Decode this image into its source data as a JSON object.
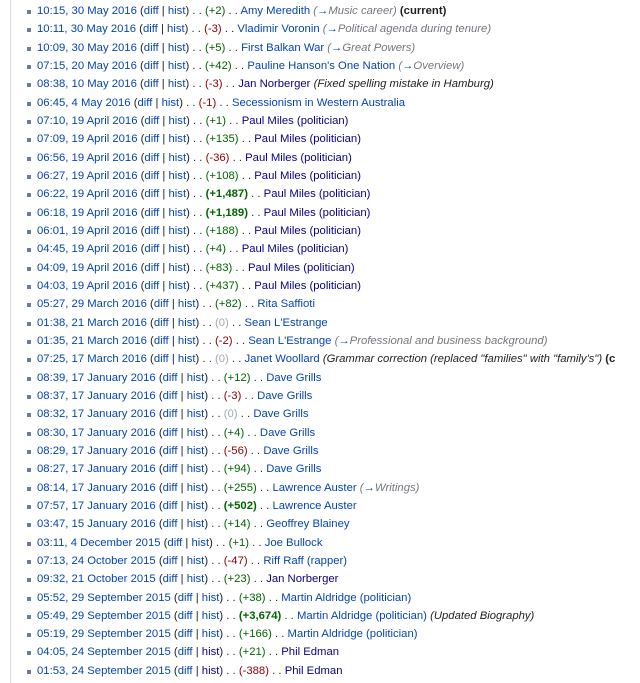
{
  "labels": {
    "diff": "diff",
    "hist": "hist",
    "current": "(current)",
    "arrow": "→",
    "dots": ". ."
  },
  "colors": {
    "link": "#0645ad",
    "visited": "#0b0080",
    "positive": "#006400",
    "negative": "#8b0000",
    "zero": "#a2a9b1"
  },
  "rows": [
    {
      "ts": "10:15, 30 May 2016",
      "delta": "+2",
      "title": "Amy Meredith",
      "section": "Music career",
      "current": true
    },
    {
      "ts": "10:11, 30 May 2016",
      "delta": "-3",
      "title": "Vladimir Voronin",
      "section": "Political agenda during tenure"
    },
    {
      "ts": "10:09, 30 May 2016",
      "delta": "+5",
      "title": "First Balkan War",
      "section": "Great Powers"
    },
    {
      "ts": "07:15, 20 May 2016",
      "delta": "+42",
      "title": "Pauline Hanson's One Nation",
      "section": "Overview"
    },
    {
      "ts": "08:38, 10 May 2016",
      "delta": "-3",
      "title": "Jan Norberger",
      "visited": true,
      "summary": "(Fixed spelling mistake in Hamburg)"
    },
    {
      "ts": "06:45, 4 May 2016",
      "delta": "-1",
      "title": "Secessionism in Western Australia"
    },
    {
      "ts": "07:10, 19 April 2016",
      "delta": "+1",
      "title": "Paul Miles (politician)",
      "visited": true
    },
    {
      "ts": "07:09, 19 April 2016",
      "delta": "+135",
      "title": "Paul Miles (politician)",
      "visited": true
    },
    {
      "ts": "06:56, 19 April 2016",
      "delta": "-36",
      "title": "Paul Miles (politician)",
      "visited": true
    },
    {
      "ts": "06:27, 19 April 2016",
      "delta": "+108",
      "title": "Paul Miles (politician)",
      "visited": true
    },
    {
      "ts": "06:22, 19 April 2016",
      "delta": "+1,487",
      "big": true,
      "title": "Paul Miles (politician)",
      "visited": true
    },
    {
      "ts": "06:18, 19 April 2016",
      "delta": "+1,189",
      "big": true,
      "title": "Paul Miles (politician)",
      "visited": true
    },
    {
      "ts": "06:01, 19 April 2016",
      "delta": "+188",
      "title": "Paul Miles (politician)",
      "visited": true
    },
    {
      "ts": "04:45, 19 April 2016",
      "delta": "+4",
      "title": "Paul Miles (politician)",
      "visited": true
    },
    {
      "ts": "04:09, 19 April 2016",
      "delta": "+83",
      "title": "Paul Miles (politician)",
      "visited": true
    },
    {
      "ts": "04:03, 19 April 2016",
      "delta": "+437",
      "title": "Paul Miles (politician)",
      "visited": true
    },
    {
      "ts": "05:27, 29 March 2016",
      "delta": "+82",
      "title": "Rita Saffioti"
    },
    {
      "ts": "01:38, 21 March 2016",
      "delta": "0",
      "title": "Sean L'Estrange"
    },
    {
      "ts": "01:35, 21 March 2016",
      "delta": "-2",
      "title": "Sean L'Estrange",
      "section": "Professional and business background"
    },
    {
      "ts": "07:25, 17 March 2016",
      "delta": "0",
      "title": "Janet Woollard",
      "summary": "(Grammar correction (replaced \"families\" with \"family's\")",
      "trailing": "(c"
    },
    {
      "ts": "08:39, 17 January 2016",
      "delta": "+12",
      "title": "Dave Grills"
    },
    {
      "ts": "08:37, 17 January 2016",
      "delta": "-3",
      "title": "Dave Grills"
    },
    {
      "ts": "08:32, 17 January 2016",
      "delta": "0",
      "title": "Dave Grills"
    },
    {
      "ts": "08:30, 17 January 2016",
      "delta": "+4",
      "title": "Dave Grills"
    },
    {
      "ts": "08:29, 17 January 2016",
      "delta": "-56",
      "title": "Dave Grills"
    },
    {
      "ts": "08:27, 17 January 2016",
      "delta": "+94",
      "title": "Dave Grills"
    },
    {
      "ts": "08:14, 17 January 2016",
      "delta": "+255",
      "title": "Lawrence Auster",
      "section": "Writings"
    },
    {
      "ts": "07:57, 17 January 2016",
      "delta": "+502",
      "big": true,
      "title": "Lawrence Auster"
    },
    {
      "ts": "03:47, 15 January 2016",
      "delta": "+14",
      "title": "Geoffrey Blainey"
    },
    {
      "ts": "03:11, 4 December 2015",
      "delta": "+1",
      "title": "Joe Bullock"
    },
    {
      "ts": "07:13, 24 October 2015",
      "delta": "-47",
      "title": "Riff Raff (rapper)"
    },
    {
      "ts": "09:32, 21 October 2015",
      "delta": "+23",
      "title": "Jan Norberger",
      "visited": true
    },
    {
      "ts": "05:52, 29 September 2015",
      "delta": "+38",
      "title": "Martin Aldridge (politician)"
    },
    {
      "ts": "05:49, 29 September 2015",
      "delta": "+3,674",
      "big": true,
      "title": "Martin Aldridge (politician)",
      "summary": "(Updated Biography)"
    },
    {
      "ts": "05:19, 29 September 2015",
      "delta": "+166",
      "title": "Martin Aldridge (politician)"
    },
    {
      "ts": "04:05, 24 September 2015",
      "delta": "+21",
      "title": "Phil Edman",
      "visited": true,
      "histVisited": true
    },
    {
      "ts": "01:53, 24 September 2015",
      "delta": "-388",
      "title": "Phil Edman",
      "visited": true,
      "histVisited": true
    }
  ]
}
